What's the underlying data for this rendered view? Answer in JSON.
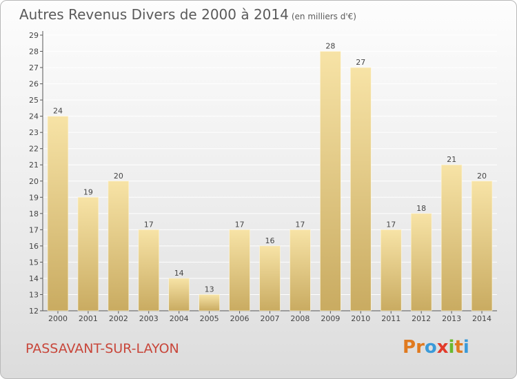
{
  "header": {
    "title": "Autres Revenus Divers de 2000 à 2014",
    "subtitle": "(en milliers d'€)"
  },
  "footer": {
    "location": "PASSAVANT-SUR-LAYON",
    "logo_letters": [
      "P",
      "r",
      "o",
      "x",
      "i",
      "t",
      "i"
    ],
    "logo_colors": [
      "#e07a1f",
      "#e07a1f",
      "#3a9ad9",
      "#e23a2a",
      "#6ab82e",
      "#e07a1f",
      "#3a9ad9"
    ]
  },
  "chart_data": {
    "type": "bar",
    "title": "Autres Revenus Divers de 2000 à 2014",
    "subtitle": "(en milliers d'€)",
    "categories": [
      "2000",
      "2001",
      "2002",
      "2003",
      "2004",
      "2005",
      "2006",
      "2007",
      "2008",
      "2009",
      "2010",
      "2011",
      "2012",
      "2013",
      "2014"
    ],
    "values": [
      24,
      19,
      20,
      17,
      14,
      13,
      17,
      16,
      17,
      28,
      27,
      17,
      18,
      21,
      20
    ],
    "data_labels": [
      "24",
      "19",
      "20",
      "17",
      "14",
      "13",
      "17",
      "16",
      "17",
      "28",
      "27",
      "17",
      "18",
      "21",
      "20"
    ],
    "ylim": [
      12,
      29
    ],
    "yticks": [
      "12",
      "13",
      "14",
      "15",
      "16",
      "17",
      "18",
      "19",
      "20",
      "21",
      "22",
      "23",
      "24",
      "25",
      "26",
      "27",
      "28",
      "29"
    ],
    "grid": true,
    "xlabel": "",
    "ylabel": "",
    "colors": {
      "bar_light": "#f7e3a6",
      "bar_dark": "#c9ab61",
      "grid": "#ffffff",
      "text": "#444444"
    }
  }
}
